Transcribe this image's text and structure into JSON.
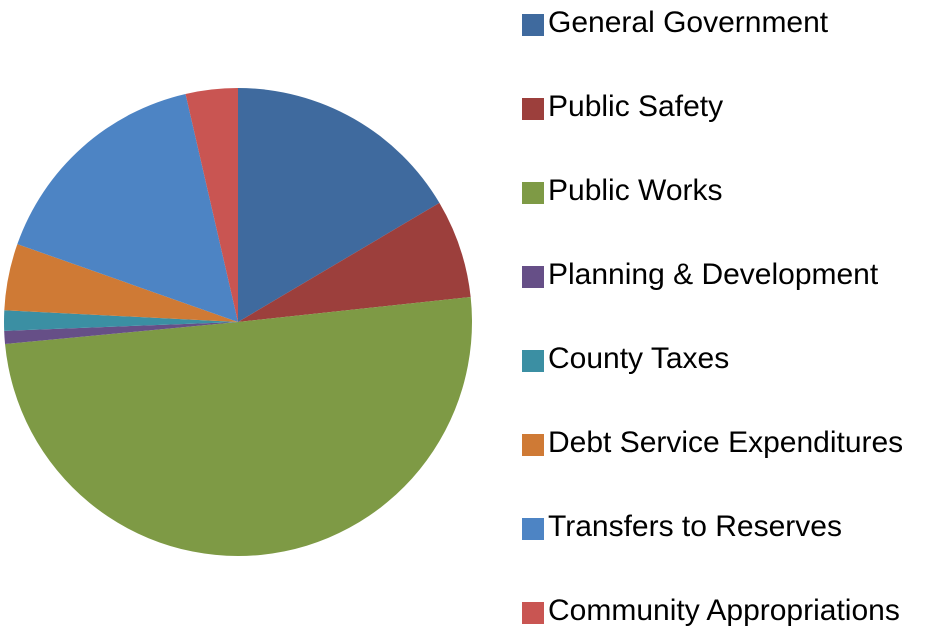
{
  "chart_data": {
    "type": "pie",
    "categories": [
      "General Government",
      "Public Safety",
      "Public Works",
      "Planning & Development",
      "County Taxes",
      "Debt Service Expenditures",
      "Transfers to Reserves",
      "Community Appropriations"
    ],
    "values": [
      16.5,
      6.8,
      50.2,
      0.9,
      1.4,
      4.6,
      16,
      3.6
    ],
    "colors": [
      "#3f6a9e",
      "#9c3f3c",
      "#7e9a45",
      "#664f87",
      "#3b8fa3",
      "#cf7a35",
      "#4d84c4",
      "#c95552"
    ],
    "legend": "right"
  }
}
